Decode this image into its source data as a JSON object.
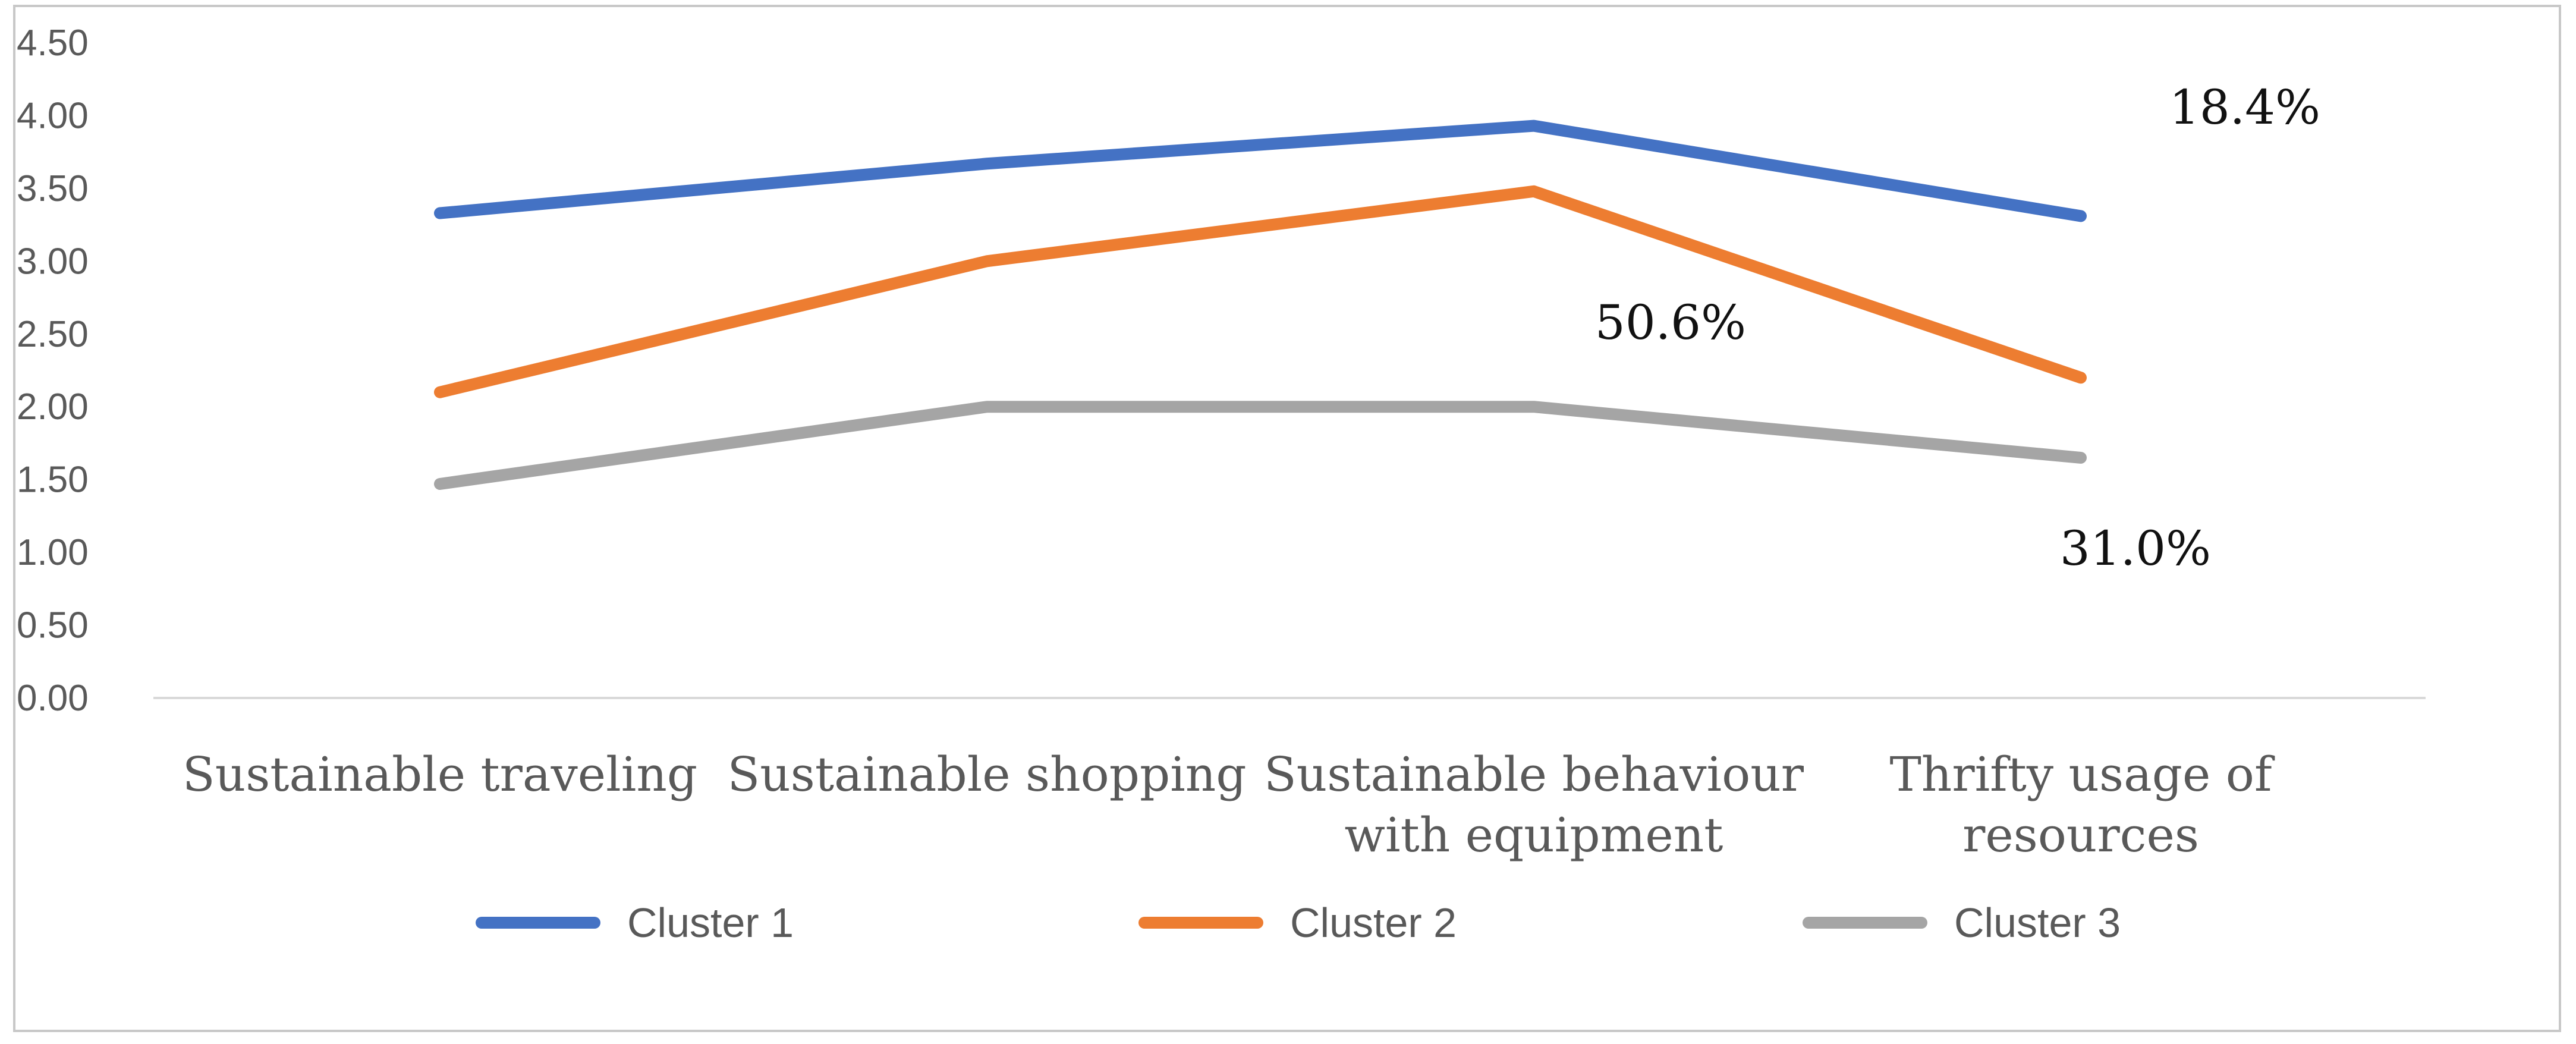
{
  "chart_data": {
    "type": "line",
    "title": "",
    "xlabel": "",
    "ylabel": "",
    "ylim": [
      0,
      4.5
    ],
    "ytick_step": 0.5,
    "ytick_labels": [
      "0.00",
      "0.50",
      "1.00",
      "1.50",
      "2.00",
      "2.50",
      "3.00",
      "3.50",
      "4.00",
      "4.50"
    ],
    "grid": false,
    "legend_position": "bottom",
    "categories": [
      [
        "Sustainable traveling"
      ],
      [
        "Sustainable shopping"
      ],
      [
        "Sustainable behaviour",
        "with equipment"
      ],
      [
        "Thrifty usage of",
        "resources"
      ]
    ],
    "series": [
      {
        "name": "Cluster 1",
        "color": "#4472C4",
        "values": [
          3.33,
          3.67,
          3.93,
          3.31
        ]
      },
      {
        "name": "Cluster 2",
        "color": "#ED7D31",
        "values": [
          2.1,
          3.0,
          3.48,
          2.2
        ]
      },
      {
        "name": "Cluster 3",
        "color": "#A5A5A5",
        "values": [
          1.47,
          2.0,
          2.0,
          1.65
        ]
      }
    ],
    "annotations": [
      {
        "text": "18.4%",
        "series": "Cluster 1",
        "near_category": 3,
        "x": 3.3,
        "y": 4.06
      },
      {
        "text": "50.6%",
        "series": "Cluster 2",
        "near_category": 2,
        "x": 2.25,
        "y": 2.58
      },
      {
        "text": "31.0%",
        "series": "Cluster 3",
        "near_category": 3,
        "x": 3.1,
        "y": 1.03
      }
    ]
  }
}
